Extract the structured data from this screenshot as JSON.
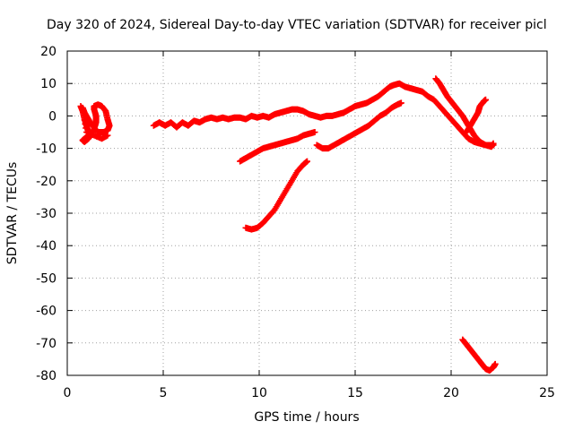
{
  "chart_data": {
    "type": "scatter",
    "title": "Day 320 of 2024, Sidereal Day-to-day VTEC variation (SDTVAR) for receiver picl",
    "xlabel": "GPS time / hours",
    "ylabel": "SDTVAR / TECUs",
    "xlim": [
      0,
      25
    ],
    "ylim": [
      -80,
      20
    ],
    "xticks": [
      0,
      5,
      10,
      15,
      20,
      25
    ],
    "yticks": [
      20,
      10,
      0,
      -10,
      -20,
      -30,
      -40,
      -50,
      -60,
      -70,
      -80
    ],
    "grid": true,
    "marker": "plus",
    "color": "#ff0000",
    "series": [
      {
        "points": [
          [
            0.7,
            3
          ],
          [
            0.8,
            1.5
          ],
          [
            0.9,
            -1
          ],
          [
            1.0,
            -3
          ],
          [
            1.1,
            -5
          ],
          [
            1.2,
            -6
          ],
          [
            1.1,
            -7
          ],
          [
            0.9,
            -8
          ],
          [
            0.8,
            -7.5
          ],
          [
            1.0,
            -6.5
          ],
          [
            1.2,
            -6
          ],
          [
            1.4,
            -4
          ],
          [
            1.5,
            -2
          ],
          [
            1.5,
            0
          ],
          [
            1.4,
            2
          ],
          [
            1.4,
            3
          ],
          [
            1.6,
            3.5
          ],
          [
            1.8,
            3
          ],
          [
            2.0,
            1.5
          ],
          [
            2.1,
            -1
          ],
          [
            2.2,
            -3
          ],
          [
            2.1,
            -4.5
          ],
          [
            1.9,
            -5
          ],
          [
            1.6,
            -5
          ],
          [
            1.3,
            -3
          ],
          [
            1.1,
            -1
          ],
          [
            0.9,
            1
          ],
          [
            0.8,
            2.5
          ],
          [
            1.0,
            -5
          ],
          [
            1.4,
            -6
          ],
          [
            1.8,
            -7
          ],
          [
            2.1,
            -6
          ]
        ]
      },
      {
        "points": [
          [
            4.5,
            -3
          ],
          [
            4.8,
            -2
          ],
          [
            5.1,
            -3
          ],
          [
            5.4,
            -2
          ],
          [
            5.7,
            -3.5
          ],
          [
            6.0,
            -2
          ],
          [
            6.3,
            -3
          ],
          [
            6.6,
            -1.5
          ],
          [
            6.9,
            -2
          ],
          [
            7.2,
            -1
          ],
          [
            7.5,
            -0.5
          ],
          [
            7.8,
            -1
          ],
          [
            8.1,
            -0.5
          ],
          [
            8.4,
            -1
          ],
          [
            8.7,
            -0.5
          ],
          [
            9.0,
            -0.5
          ],
          [
            9.3,
            -1
          ],
          [
            9.6,
            0
          ],
          [
            9.9,
            -0.5
          ],
          [
            10.2,
            0
          ],
          [
            10.5,
            -0.5
          ],
          [
            10.8,
            0.5
          ],
          [
            11.1,
            1
          ],
          [
            11.4,
            1.5
          ],
          [
            11.7,
            2
          ],
          [
            12.0,
            2
          ],
          [
            12.3,
            1.5
          ],
          [
            12.6,
            0.5
          ],
          [
            12.9,
            0
          ],
          [
            13.2,
            -0.5
          ],
          [
            13.5,
            0
          ],
          [
            13.8,
            0
          ],
          [
            14.1,
            0.5
          ],
          [
            14.4,
            1
          ],
          [
            14.7,
            2
          ],
          [
            15.0,
            3
          ],
          [
            15.3,
            3.5
          ],
          [
            15.6,
            4
          ],
          [
            15.9,
            5
          ],
          [
            16.2,
            6
          ],
          [
            16.5,
            7.5
          ],
          [
            16.8,
            9
          ],
          [
            17.0,
            9.5
          ],
          [
            17.3,
            10
          ],
          [
            17.6,
            9
          ],
          [
            17.9,
            8.5
          ],
          [
            18.2,
            8
          ],
          [
            18.5,
            7.5
          ],
          [
            18.8,
            6
          ],
          [
            19.1,
            5
          ],
          [
            19.4,
            3
          ],
          [
            19.7,
            1
          ],
          [
            20.0,
            -1
          ],
          [
            20.3,
            -3
          ],
          [
            20.6,
            -5
          ],
          [
            20.9,
            -7
          ],
          [
            21.2,
            -8
          ],
          [
            21.5,
            -8.5
          ],
          [
            21.8,
            -9
          ],
          [
            22.1,
            -9.5
          ],
          [
            22.2,
            -8.5
          ]
        ]
      },
      {
        "points": [
          [
            9.0,
            -14
          ],
          [
            9.3,
            -13
          ],
          [
            9.6,
            -12
          ],
          [
            9.9,
            -11
          ],
          [
            10.2,
            -10
          ],
          [
            10.5,
            -9.5
          ],
          [
            10.8,
            -9
          ],
          [
            11.1,
            -8.5
          ],
          [
            11.4,
            -8
          ],
          [
            11.7,
            -7.5
          ],
          [
            12.0,
            -7
          ],
          [
            12.3,
            -6
          ],
          [
            12.6,
            -5.5
          ],
          [
            12.9,
            -5
          ]
        ]
      },
      {
        "points": [
          [
            9.3,
            -34.5
          ],
          [
            9.6,
            -35
          ],
          [
            9.9,
            -34.5
          ],
          [
            10.2,
            -33
          ],
          [
            10.5,
            -31
          ],
          [
            10.8,
            -29
          ],
          [
            11.1,
            -26
          ],
          [
            11.4,
            -23
          ],
          [
            11.7,
            -20
          ],
          [
            12.0,
            -17
          ],
          [
            12.3,
            -15
          ],
          [
            12.5,
            -14
          ]
        ]
      },
      {
        "points": [
          [
            13.0,
            -9
          ],
          [
            13.3,
            -10
          ],
          [
            13.6,
            -10
          ],
          [
            13.9,
            -9
          ],
          [
            14.2,
            -8
          ],
          [
            14.5,
            -7
          ],
          [
            14.8,
            -6
          ],
          [
            15.1,
            -5
          ],
          [
            15.4,
            -4
          ],
          [
            15.7,
            -3
          ],
          [
            16.0,
            -1.5
          ],
          [
            16.3,
            0
          ],
          [
            16.6,
            1
          ],
          [
            16.9,
            2.5
          ],
          [
            17.2,
            3.5
          ],
          [
            17.4,
            4
          ]
        ]
      },
      {
        "points": [
          [
            19.2,
            11.5
          ],
          [
            19.4,
            10
          ],
          [
            19.6,
            8
          ],
          [
            19.8,
            6
          ],
          [
            20.0,
            4.5
          ],
          [
            20.2,
            3
          ],
          [
            20.4,
            1.5
          ],
          [
            20.6,
            0
          ],
          [
            20.8,
            -2
          ],
          [
            21.0,
            -4
          ],
          [
            21.2,
            -6
          ],
          [
            21.5,
            -8
          ],
          [
            21.8,
            -9
          ],
          [
            22.2,
            -9
          ]
        ]
      },
      {
        "points": [
          [
            20.8,
            -5
          ],
          [
            21.0,
            -3
          ],
          [
            21.2,
            -1
          ],
          [
            21.4,
            1
          ],
          [
            21.5,
            3
          ],
          [
            21.7,
            4.5
          ],
          [
            21.8,
            5
          ]
        ]
      },
      {
        "points": [
          [
            20.6,
            -69
          ],
          [
            20.8,
            -70.5
          ],
          [
            21.0,
            -72
          ],
          [
            21.2,
            -73.5
          ],
          [
            21.4,
            -75
          ],
          [
            21.6,
            -76.5
          ],
          [
            21.8,
            -78
          ],
          [
            22.0,
            -78.5
          ],
          [
            22.2,
            -77.5
          ],
          [
            22.3,
            -76.5
          ]
        ]
      }
    ]
  }
}
